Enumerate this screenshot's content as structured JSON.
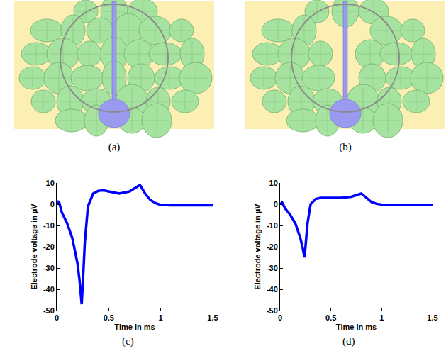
{
  "panels": [
    {
      "panel_label": "(a)"
    },
    {
      "panel_label": "(b)"
    }
  ],
  "chart_data": [
    {
      "type": "line",
      "panel_label": "(c)",
      "x_label": "Time in ms",
      "y_label": "Electrode voltage in µV",
      "x": [
        0,
        0.02,
        0.05,
        0.1,
        0.15,
        0.2,
        0.22,
        0.24,
        0.25,
        0.27,
        0.3,
        0.35,
        0.4,
        0.45,
        0.5,
        0.6,
        0.7,
        0.75,
        0.8,
        0.85,
        0.9,
        0.95,
        1.0,
        1.1,
        1.2,
        1.3,
        1.4,
        1.5
      ],
      "values": [
        0,
        1.5,
        -4,
        -9,
        -16,
        -28,
        -36,
        -47,
        -38,
        -18,
        -1,
        5,
        6.3,
        6.5,
        6,
        5,
        6,
        7.5,
        9,
        5,
        2,
        0.5,
        -0.3,
        -0.5,
        -0.5,
        -0.5,
        -0.5,
        -0.5
      ],
      "color": "#0000ff",
      "xlim": [
        0,
        1.5
      ],
      "xticks": [
        0,
        0.5,
        1,
        1.5
      ],
      "ylim": [
        -50,
        10
      ],
      "yticks": [
        -50,
        -40,
        -30,
        -20,
        -10,
        0,
        10
      ],
      "grid": false
    },
    {
      "type": "line",
      "panel_label": "(d)",
      "x_label": "Time in ms",
      "y_label": "Electrode voltage in µV",
      "x": [
        0,
        0.02,
        0.05,
        0.1,
        0.15,
        0.2,
        0.22,
        0.24,
        0.25,
        0.27,
        0.3,
        0.35,
        0.4,
        0.45,
        0.5,
        0.6,
        0.7,
        0.75,
        0.8,
        0.85,
        0.9,
        0.95,
        1.0,
        1.1,
        1.2,
        1.3,
        1.4,
        1.5
      ],
      "values": [
        0,
        0.8,
        -2,
        -5,
        -9,
        -16,
        -20,
        -25,
        -20,
        -9,
        0,
        2.5,
        3,
        3,
        3,
        3,
        3.5,
        4.2,
        5,
        3,
        1,
        0.2,
        -0.2,
        -0.3,
        -0.3,
        -0.3,
        -0.3,
        -0.3
      ],
      "color": "#0000ff",
      "xlim": [
        0,
        1.5
      ],
      "xticks": [
        0,
        0.5,
        1,
        1.5
      ],
      "ylim": [
        -50,
        10
      ],
      "yticks": [
        -50,
        -40,
        -30,
        -20,
        -10,
        0,
        10
      ],
      "grid": false
    }
  ]
}
